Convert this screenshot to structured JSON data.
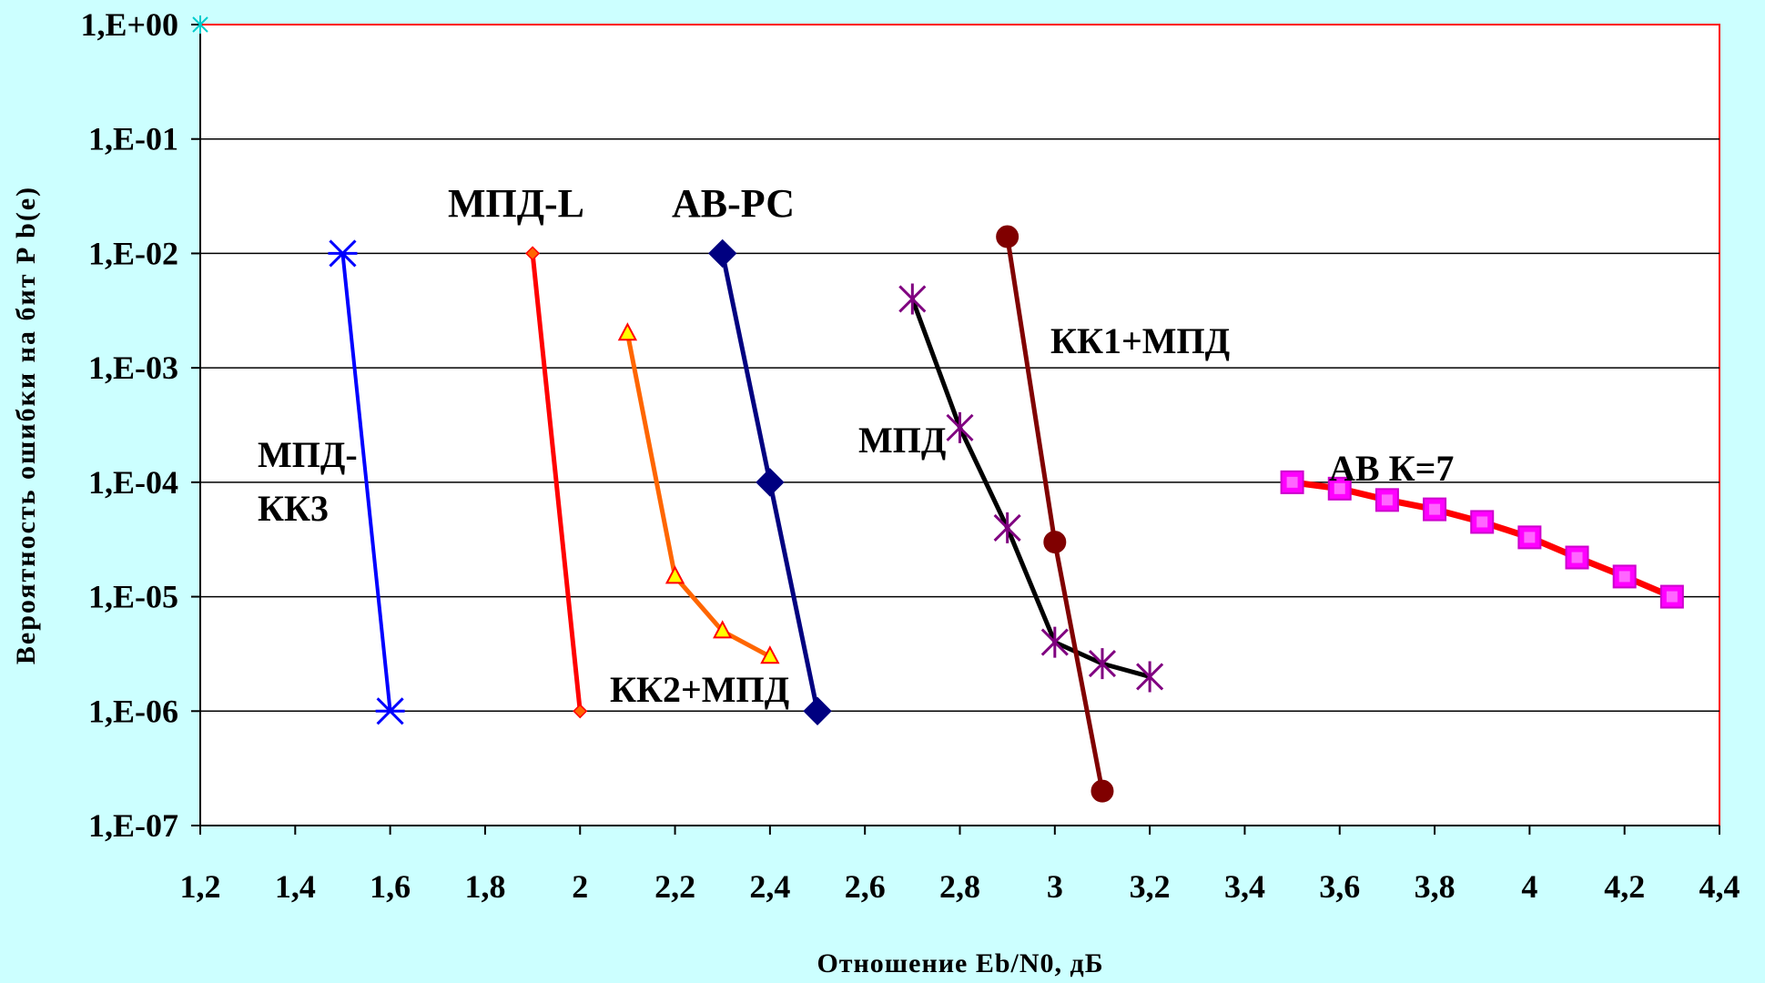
{
  "chart_data": {
    "type": "line",
    "ylabel": "Вероятность ошибки на бит P b(e)",
    "xlabel": "Отношение Eb/N0, дБ",
    "xlim": [
      1.2,
      4.4
    ],
    "ylim": [
      1e-07,
      1
    ],
    "y_scale": "log",
    "grid": "horizontal",
    "x_ticks": [
      "1,2",
      "1,4",
      "1,6",
      "1,8",
      "2",
      "2,2",
      "2,4",
      "2,6",
      "2,8",
      "3",
      "3,2",
      "3,4",
      "3,6",
      "3,8",
      "4",
      "4,2",
      "4,4"
    ],
    "y_ticks": [
      "1,E+00",
      "1,E-01",
      "1,E-02",
      "1,E-03",
      "1,E-04",
      "1,E-05",
      "1,E-06",
      "1,E-07"
    ],
    "background": "#CCFFFF",
    "plot_background": "#FFFFFF",
    "plot_border": "#FF0000",
    "series": [
      {
        "name": "МПД-КК3",
        "label_lines": [
          "МПД-",
          "КК3"
        ],
        "color": "#0000FF",
        "marker": "asterisk",
        "x": [
          1.5,
          1.6
        ],
        "y": [
          0.01,
          1e-06
        ]
      },
      {
        "name": "МПД-L",
        "label_lines": [
          "МПД-L"
        ],
        "color": "#FF0000",
        "marker": "small-diamond",
        "x": [
          1.9,
          2.0
        ],
        "y": [
          0.01,
          1e-06
        ]
      },
      {
        "name": "КК2+МПД",
        "label_lines": [
          "КК2+МПД"
        ],
        "color": "#FF6600",
        "marker": "triangle",
        "x": [
          2.1,
          2.2,
          2.3,
          2.4
        ],
        "y": [
          0.002,
          1.5e-05,
          5e-06,
          3e-06
        ]
      },
      {
        "name": "АВ-РС",
        "label_lines": [
          "АВ-РС"
        ],
        "color": "#000080",
        "marker": "diamond",
        "x": [
          2.3,
          2.4,
          2.5
        ],
        "y": [
          0.01,
          0.0001,
          1e-06
        ]
      },
      {
        "name": "МПД",
        "label_lines": [
          "МПД"
        ],
        "color": "#000000",
        "marker": "star",
        "marker_color": "#800080",
        "x": [
          2.7,
          2.8,
          2.9,
          3.0,
          3.1,
          3.2
        ],
        "y": [
          0.004,
          0.0003,
          4e-05,
          4e-06,
          2.6e-06,
          2e-06
        ]
      },
      {
        "name": "КК1+МПД",
        "label_lines": [
          "КК1+МПД"
        ],
        "color": "#800000",
        "marker": "circle",
        "x": [
          2.9,
          3.0,
          3.1
        ],
        "y": [
          0.014,
          3e-05,
          2e-07
        ]
      },
      {
        "name": "АВ К=7",
        "label_lines": [
          "АВ К=7"
        ],
        "color": "#FF0000",
        "marker": "square",
        "marker_color": "#FF00FF",
        "x": [
          3.5,
          3.6,
          3.7,
          3.8,
          3.9,
          4.0,
          4.1,
          4.2,
          4.3
        ],
        "y": [
          0.0001,
          8.8e-05,
          7e-05,
          5.8e-05,
          4.5e-05,
          3.3e-05,
          2.2e-05,
          1.5e-05,
          1e-05
        ]
      }
    ]
  }
}
